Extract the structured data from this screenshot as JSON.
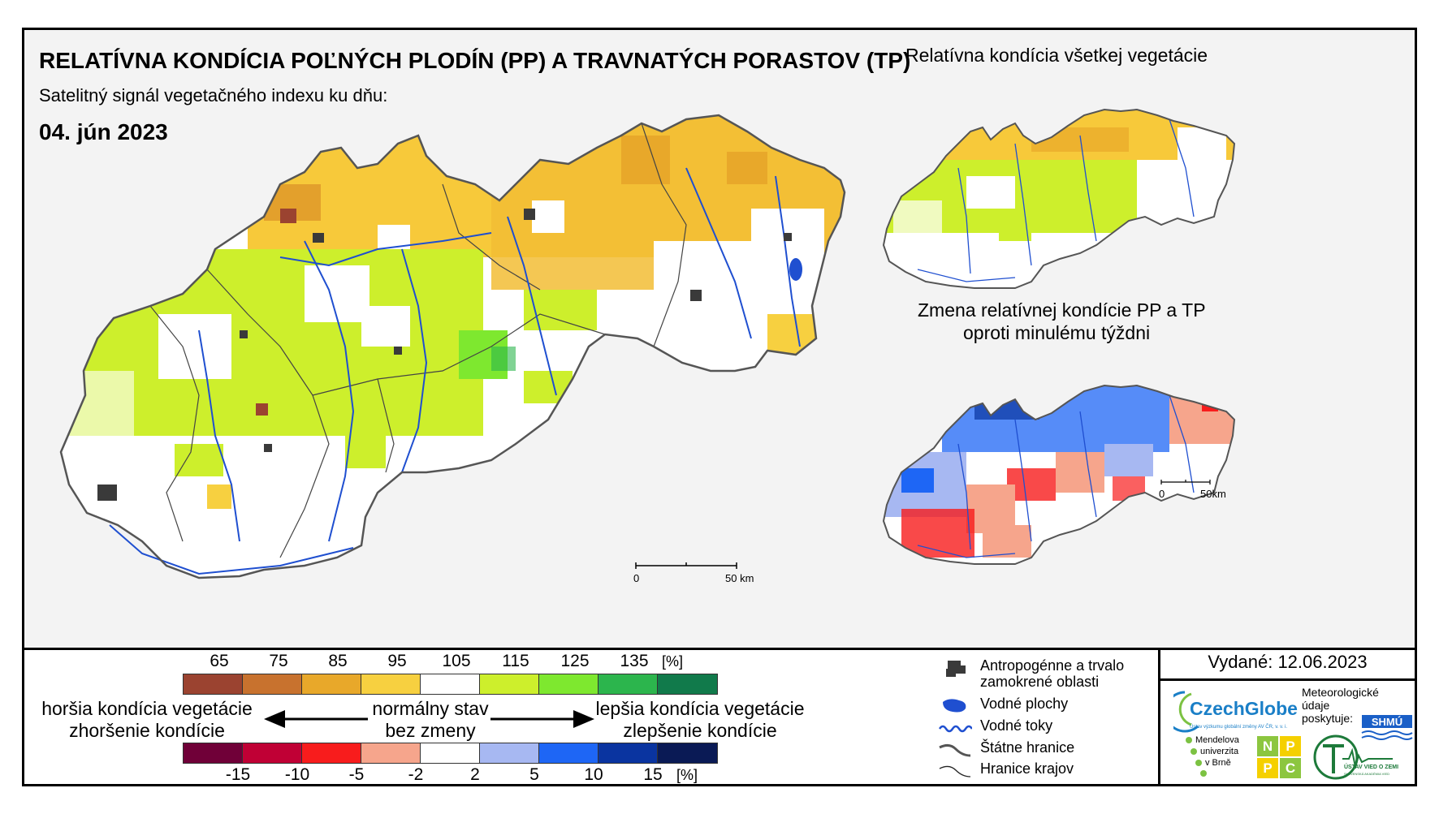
{
  "title": "RELATÍVNA KONDÍCIA POĽNÝCH PLODÍN (PP) A TRAVNATÝCH PORASTOV (TP)",
  "subtitle": "Satelitný signál vegetačného indexu ku dňu:",
  "date": "04. jún 2023",
  "inset_top_title": "Relatívna kondícia všetkej vegetácie",
  "inset_bottom_title_line1": "Zmena relatívnej kondície PP a TP",
  "inset_bottom_title_line2": "oproti minulému týždni",
  "scale_main": {
    "zero": "0",
    "end": "50 km"
  },
  "scale_inset": {
    "zero": "0",
    "end": "50km"
  },
  "condition_scale": {
    "ticks": [
      "65",
      "75",
      "85",
      "95",
      "105",
      "115",
      "125",
      "135"
    ],
    "unit": "[%]",
    "colors": [
      "#9b4330",
      "#c8722e",
      "#e8a82a",
      "#f7d040",
      "#ffffff",
      "#cdef2c",
      "#7ee82f",
      "#2cb54d",
      "#117a4b"
    ]
  },
  "change_scale": {
    "ticks": [
      "-15",
      "-10",
      "-5",
      "-2",
      "2",
      "5",
      "10",
      "15"
    ],
    "unit": "[%]",
    "colors": [
      "#700038",
      "#c00035",
      "#f81c1c",
      "#f6a58c",
      "#ffffff",
      "#a7b8f2",
      "#1e66f5",
      "#0a34a0",
      "#0a1a55"
    ]
  },
  "legend": {
    "worse_line1": "horšia kondícia vegetácie",
    "worse_line2": "zhoršenie kondície",
    "normal_line1": "normálny stav",
    "normal_line2": "bez zmeny",
    "better_line1": "lepšia kondícia vegetácie",
    "better_line2": "zlepšenie kondície"
  },
  "key": {
    "anthropogenic_line1": "Antropogénne a trvalo",
    "anthropogenic_line2": "zamokrené oblasti",
    "water_bodies": "Vodné plochy",
    "water_courses": "Vodné toky",
    "state_border": "Štátne hranice",
    "region_border": "Hranice krajov"
  },
  "issued": "Vydané: 12.06.2023",
  "logos": {
    "czechglobe": "CzechGlobe",
    "czechglobe_sub": "Ústav výzkumu globální změny AV ČR, v. v. i.",
    "meteo_line1": "Meteorologické",
    "meteo_line2": "údaje",
    "meteo_line3": "poskytuje:",
    "shmu": "SHMÚ",
    "mendel_line1": "Mendelova",
    "mendel_line2": "univerzita",
    "mendel_line3": "v Brně",
    "nppc_letters": [
      "N",
      "P",
      "P",
      "C"
    ],
    "uvoz": "ÚSTAV VIED O ZEMI",
    "uvoz_sub": "SLOVENSKÁ AKADÉMIA VIED"
  },
  "colors": {
    "frame": "#000000",
    "river": "#1f4fd0",
    "border": "#555555",
    "urban": "#3a3a3a",
    "czechglobe_blue": "#1a7fc7",
    "czechglobe_green": "#7cc242",
    "nppc_green": "#8cc63f",
    "nppc_yellow": "#f5d000"
  }
}
